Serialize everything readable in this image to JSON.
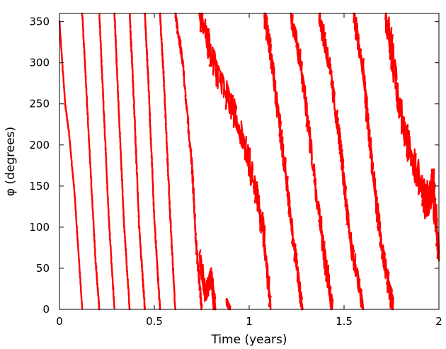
{
  "chart_data": {
    "type": "scatter",
    "xlabel": "Time (years)",
    "ylabel": "φ (degrees)",
    "xlim": [
      0,
      2
    ],
    "ylim": [
      0,
      360
    ],
    "xticks": [
      "0",
      "0.5",
      "1",
      "1.5",
      "2"
    ],
    "xtick_values": [
      0,
      0.5,
      1,
      1.5,
      2
    ],
    "yticks": [
      "0",
      "50",
      "100",
      "150",
      "200",
      "250",
      "300",
      "350"
    ],
    "ytick_values": [
      0,
      50,
      100,
      150,
      200,
      250,
      300,
      350
    ],
    "grid": false,
    "legend": "none",
    "series": [
      {
        "color": "#ff0000",
        "marker": "dot",
        "segments": [
          {
            "x": [
              0.0,
              0.03,
              0.05,
              0.08,
              0.1,
              0.12
            ],
            "y": [
              350,
              250,
              215,
              140,
              70,
              0
            ],
            "noise": 2
          },
          {
            "x": [
              0.12,
              0.15,
              0.19,
              0.21
            ],
            "y": [
              360,
              230,
              60,
              0
            ],
            "noise": 3
          },
          {
            "x": [
              0.21,
              0.23,
              0.26,
              0.29
            ],
            "y": [
              360,
              260,
              110,
              0
            ],
            "noise": 3
          },
          {
            "x": [
              0.29,
              0.31,
              0.34,
              0.37
            ],
            "y": [
              360,
              255,
              105,
              0
            ],
            "noise": 3
          },
          {
            "x": [
              0.37,
              0.39,
              0.42,
              0.45
            ],
            "y": [
              360,
              265,
              100,
              0
            ],
            "noise": 4
          },
          {
            "x": [
              0.45,
              0.47,
              0.5,
              0.53
            ],
            "y": [
              360,
              270,
              110,
              0
            ],
            "noise": 4
          },
          {
            "x": [
              0.53,
              0.55,
              0.58,
              0.61
            ],
            "y": [
              360,
              280,
              130,
              0
            ],
            "noise": 4
          },
          {
            "x": [
              0.61,
              0.65,
              0.7,
              0.72,
              0.75
            ],
            "y": [
              360,
              300,
              170,
              80,
              0
            ],
            "noise": 7
          },
          {
            "x": [
              0.74,
              0.77,
              0.8,
              0.82
            ],
            "y": [
              60,
              20,
              40,
              0
            ],
            "noise": 12
          },
          {
            "x": [
              0.88,
              0.89,
              0.9
            ],
            "y": [
              10,
              5,
              0
            ],
            "noise": 4
          },
          {
            "x": [
              0.74,
              0.8,
              0.86,
              0.92,
              0.98,
              1.03,
              1.08,
              1.11
            ],
            "y": [
              360,
              310,
              270,
              240,
              200,
              150,
              90,
              0
            ],
            "noise": 18
          },
          {
            "x": [
              1.08,
              1.12,
              1.18,
              1.24,
              1.28
            ],
            "y": [
              360,
              300,
              190,
              70,
              0
            ],
            "noise": 14
          },
          {
            "x": [
              1.22,
              1.27,
              1.34,
              1.4,
              1.44
            ],
            "y": [
              360,
              300,
              170,
              60,
              0
            ],
            "noise": 14
          },
          {
            "x": [
              1.37,
              1.42,
              1.48,
              1.53,
              1.6
            ],
            "y": [
              360,
              300,
              200,
              90,
              0
            ],
            "noise": 14
          },
          {
            "x": [
              1.55,
              1.6,
              1.65,
              1.7,
              1.76
            ],
            "y": [
              360,
              290,
              170,
              70,
              0
            ],
            "noise": 14
          },
          {
            "x": [
              1.72,
              1.76,
              1.82,
              1.88,
              1.93,
              1.97,
              2.0
            ],
            "y": [
              360,
              300,
              210,
              170,
              130,
              150,
              70
            ],
            "noise": 22
          }
        ]
      }
    ]
  }
}
